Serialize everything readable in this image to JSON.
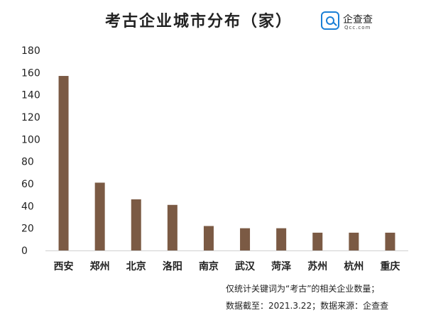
{
  "chart_data": {
    "type": "bar",
    "title": "考古企业城市分布（家）",
    "categories": [
      "西安",
      "郑州",
      "北京",
      "洛阳",
      "南京",
      "武汉",
      "菏泽",
      "苏州",
      "杭州",
      "重庆"
    ],
    "values": [
      157,
      61,
      46,
      41,
      22,
      20,
      20,
      16,
      16,
      16
    ],
    "xlabel": "",
    "ylabel": "",
    "ylim": [
      0,
      180
    ],
    "yticks": [
      0,
      20,
      40,
      60,
      80,
      100,
      120,
      140,
      160,
      180
    ],
    "grid": false,
    "legend": "none",
    "bar_color": "#7b5a44"
  },
  "brand": {
    "name": "企查查",
    "sub": "Qcc.com",
    "accent": "#1a7fd6"
  },
  "notes": {
    "line1": "仅统计关键词为“考古”的相关企业数量；",
    "line2": "数据截至：2021.3.22；数据来源：企查查"
  }
}
